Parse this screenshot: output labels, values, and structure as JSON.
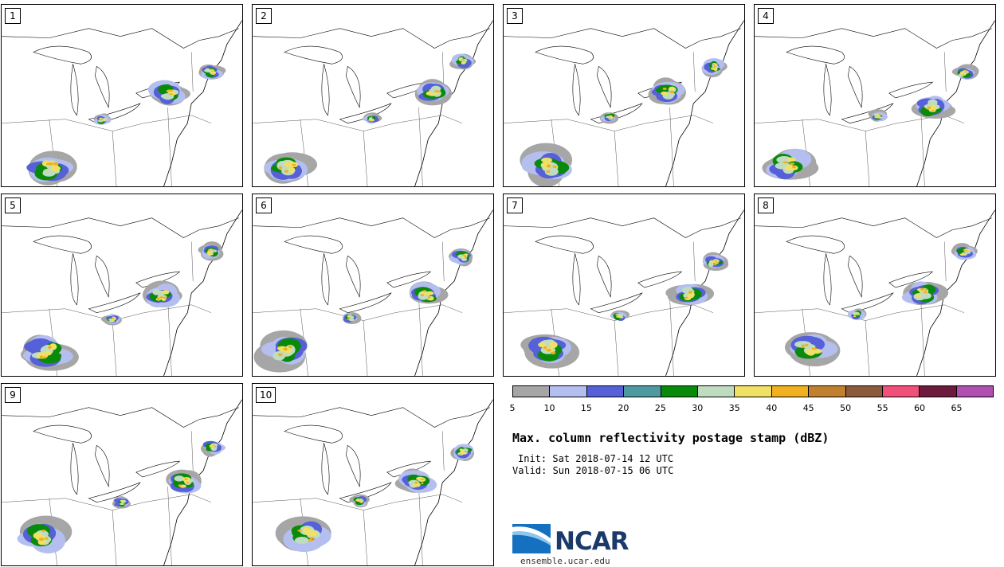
{
  "panels": [
    {
      "label": "1"
    },
    {
      "label": "2"
    },
    {
      "label": "3"
    },
    {
      "label": "4"
    },
    {
      "label": "5"
    },
    {
      "label": "6"
    },
    {
      "label": "7"
    },
    {
      "label": "8"
    },
    {
      "label": "9"
    },
    {
      "label": "10"
    }
  ],
  "colorbar": {
    "colors": [
      "#a6a6a6",
      "#b4bff0",
      "#5560d9",
      "#4e9aa0",
      "#0a8a0a",
      "#c0dcc0",
      "#f0e066",
      "#f0b020",
      "#c08030",
      "#8b5a3c",
      "#f0507a",
      "#6e1a3c",
      "#b050b0"
    ],
    "ticks": [
      "5",
      "10",
      "15",
      "20",
      "25",
      "30",
      "35",
      "40",
      "45",
      "50",
      "55",
      "60",
      "65"
    ]
  },
  "title": "Max. column reflectivity postage stamp (dBZ)",
  "init": "Init: Sat 2018-07-14 12 UTC",
  "valid": "Valid: Sun 2018-07-15 06 UTC",
  "logo": {
    "name": "NCAR",
    "url": "ensemble.ucar.edu"
  }
}
